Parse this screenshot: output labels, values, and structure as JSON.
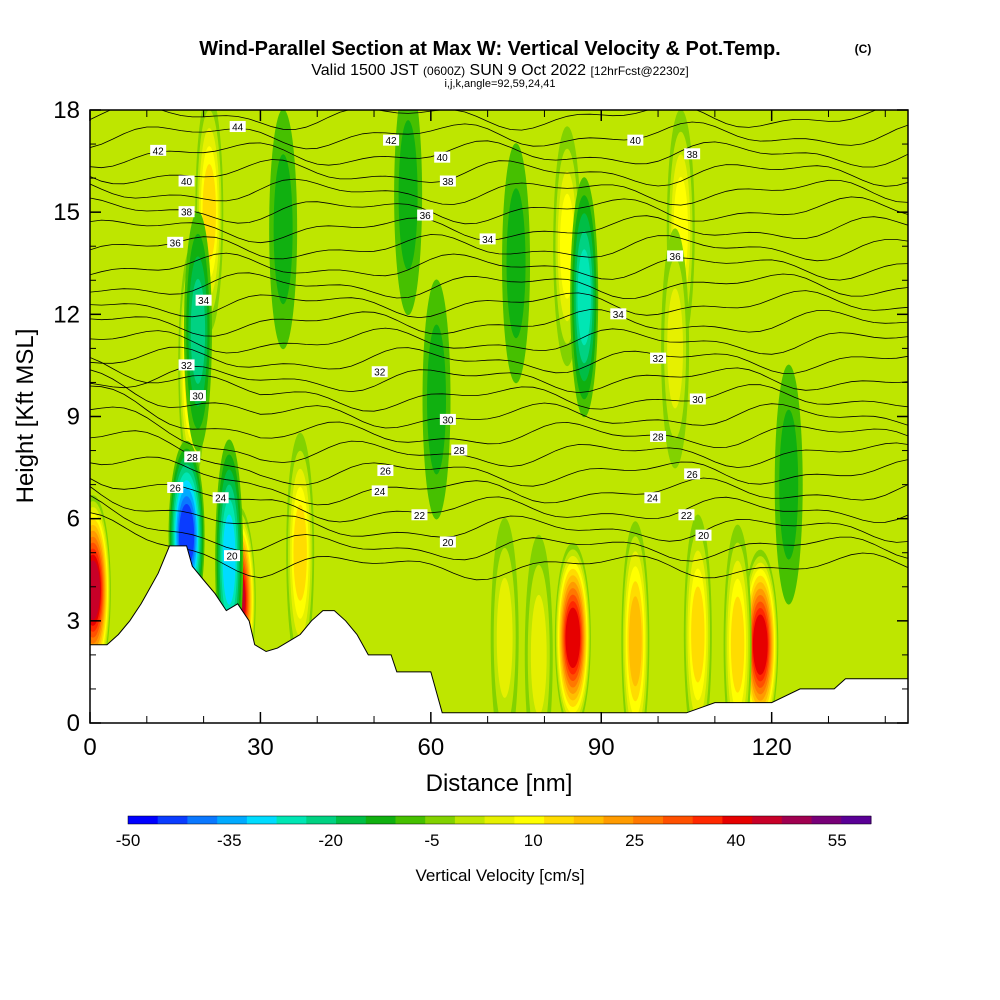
{
  "title": {
    "main": "Wind-Parallel Section at Max W: Vertical Velocity & Pot.Temp.",
    "copyright": "(C)",
    "valid_prefix": "Valid 1500 JST",
    "valid_zulu": "(0600Z)",
    "valid_date": "SUN 9 Oct 2022",
    "forecast": "[12hrFcst@2230z]",
    "indices": "i,j,k,angle=92,59,24,41"
  },
  "chart_data": {
    "type": "heatmap",
    "xlabel": "Distance [nm]",
    "ylabel": "Height [Kft MSL]",
    "xlim": [
      0,
      144
    ],
    "ylim": [
      0,
      18
    ],
    "x_ticks": [
      0,
      30,
      60,
      90,
      120
    ],
    "y_ticks": [
      0,
      3,
      6,
      9,
      12,
      15,
      18
    ],
    "colorbar": {
      "label": "Vertical Velocity [cm/s]",
      "min": -50,
      "max": 60,
      "step": 5,
      "tick_labels": [
        -50,
        -35,
        -20,
        -5,
        10,
        25,
        40,
        55
      ],
      "colors": [
        "#0000ff",
        "#0a3cff",
        "#0a78ff",
        "#00aaff",
        "#00dcff",
        "#00e6b4",
        "#00d282",
        "#00be46",
        "#10b010",
        "#46c000",
        "#82d200",
        "#bee600",
        "#e6f000",
        "#ffff00",
        "#ffdc00",
        "#ffbe00",
        "#ff9b00",
        "#ff7800",
        "#ff5000",
        "#ff2800",
        "#e60000",
        "#c80028",
        "#a00050",
        "#780078",
        "#5a0096"
      ]
    },
    "terrain_kft": [
      [
        0,
        2.3
      ],
      [
        3,
        2.3
      ],
      [
        5,
        2.6
      ],
      [
        7,
        3.0
      ],
      [
        9,
        3.5
      ],
      [
        10,
        3.8
      ],
      [
        12,
        4.4
      ],
      [
        14,
        5.2
      ],
      [
        17,
        5.2
      ],
      [
        18,
        4.6
      ],
      [
        20,
        4.2
      ],
      [
        22,
        3.8
      ],
      [
        24,
        3.3
      ],
      [
        26,
        3.5
      ],
      [
        28,
        3.0
      ],
      [
        29,
        2.3
      ],
      [
        31,
        2.1
      ],
      [
        33,
        2.2
      ],
      [
        35,
        2.4
      ],
      [
        37,
        2.6
      ],
      [
        39,
        3.0
      ],
      [
        41,
        3.3
      ],
      [
        43,
        3.3
      ],
      [
        45,
        3.0
      ],
      [
        47,
        2.6
      ],
      [
        49,
        2.0
      ],
      [
        53,
        2.0
      ],
      [
        54,
        1.5
      ],
      [
        60,
        1.5
      ],
      [
        62,
        0.3
      ],
      [
        75,
        0.3
      ],
      [
        84,
        0.3
      ],
      [
        88,
        0.3
      ],
      [
        100,
        0.3
      ],
      [
        105,
        0.3
      ],
      [
        110,
        0.6
      ],
      [
        120,
        0.6
      ],
      [
        125,
        1.0
      ],
      [
        131,
        1.0
      ],
      [
        133,
        1.3
      ],
      [
        144,
        1.3
      ]
    ],
    "w_cells": [
      {
        "x": 0.5,
        "z": 3.9,
        "w": 58
      },
      {
        "x": 26,
        "z": 3.6,
        "w": 58
      },
      {
        "x": 18,
        "z": 10.5,
        "w": 25
      },
      {
        "x": 21,
        "z": 15.0,
        "w": 22
      },
      {
        "x": 17,
        "z": 5.5,
        "w": -40
      },
      {
        "x": 19,
        "z": 11.5,
        "w": -15
      },
      {
        "x": 24.5,
        "z": 4.8,
        "w": -25
      },
      {
        "x": 85,
        "z": 2.5,
        "w": 52
      },
      {
        "x": 96,
        "z": 2.4,
        "w": 28
      },
      {
        "x": 107,
        "z": 2.6,
        "w": 20
      },
      {
        "x": 118,
        "z": 2.3,
        "w": 52
      },
      {
        "x": 114,
        "z": 2.3,
        "w": 22
      },
      {
        "x": 73,
        "z": 2.5,
        "w": 12
      },
      {
        "x": 79,
        "z": 2.0,
        "w": 10
      },
      {
        "x": 37,
        "z": 5.0,
        "w": 22
      },
      {
        "x": 84,
        "z": 14.0,
        "w": 18
      },
      {
        "x": 104,
        "z": 14.5,
        "w": 17
      },
      {
        "x": 103,
        "z": 11.0,
        "w": 14
      },
      {
        "x": 87,
        "z": 12.5,
        "w": -20
      },
      {
        "x": 75,
        "z": 13.5,
        "w": -8
      },
      {
        "x": 56,
        "z": 15.5,
        "w": -8
      },
      {
        "x": 34,
        "z": 14.5,
        "w": -5
      },
      {
        "x": 61,
        "z": 9.5,
        "w": -6
      },
      {
        "x": 123,
        "z": 7.0,
        "w": -5
      }
    ],
    "theta_labels": [
      {
        "x": 26,
        "z": 17.5,
        "text": "44"
      },
      {
        "x": 12,
        "z": 16.8,
        "text": "42"
      },
      {
        "x": 53,
        "z": 17.1,
        "text": "42"
      },
      {
        "x": 17,
        "z": 15.9,
        "text": "40"
      },
      {
        "x": 62,
        "z": 16.6,
        "text": "40"
      },
      {
        "x": 96,
        "z": 17.1,
        "text": "40"
      },
      {
        "x": 17,
        "z": 15.0,
        "text": "38"
      },
      {
        "x": 63,
        "z": 15.9,
        "text": "38"
      },
      {
        "x": 106,
        "z": 16.7,
        "text": "38"
      },
      {
        "x": 15,
        "z": 14.1,
        "text": "36"
      },
      {
        "x": 59,
        "z": 14.9,
        "text": "36"
      },
      {
        "x": 103,
        "z": 13.7,
        "text": "36"
      },
      {
        "x": 20,
        "z": 12.4,
        "text": "34"
      },
      {
        "x": 70,
        "z": 14.2,
        "text": "34"
      },
      {
        "x": 93,
        "z": 12.0,
        "text": "34"
      },
      {
        "x": 17,
        "z": 10.5,
        "text": "32"
      },
      {
        "x": 51,
        "z": 10.3,
        "text": "32"
      },
      {
        "x": 100,
        "z": 10.7,
        "text": "32"
      },
      {
        "x": 19,
        "z": 9.6,
        "text": "30"
      },
      {
        "x": 63,
        "z": 8.9,
        "text": "30"
      },
      {
        "x": 107,
        "z": 9.5,
        "text": "30"
      },
      {
        "x": 18,
        "z": 7.8,
        "text": "28"
      },
      {
        "x": 65,
        "z": 8.0,
        "text": "28"
      },
      {
        "x": 100,
        "z": 8.4,
        "text": "28"
      },
      {
        "x": 15,
        "z": 6.9,
        "text": "26"
      },
      {
        "x": 52,
        "z": 7.4,
        "text": "26"
      },
      {
        "x": 106,
        "z": 7.3,
        "text": "26"
      },
      {
        "x": 23,
        "z": 6.6,
        "text": "24"
      },
      {
        "x": 51,
        "z": 6.8,
        "text": "24"
      },
      {
        "x": 99,
        "z": 6.6,
        "text": "24"
      },
      {
        "x": 58,
        "z": 6.1,
        "text": "22"
      },
      {
        "x": 105,
        "z": 6.1,
        "text": "22"
      },
      {
        "x": 25,
        "z": 4.9,
        "text": "20"
      },
      {
        "x": 63,
        "z": 5.3,
        "text": "20"
      },
      {
        "x": 108,
        "z": 5.5,
        "text": "20"
      }
    ]
  }
}
